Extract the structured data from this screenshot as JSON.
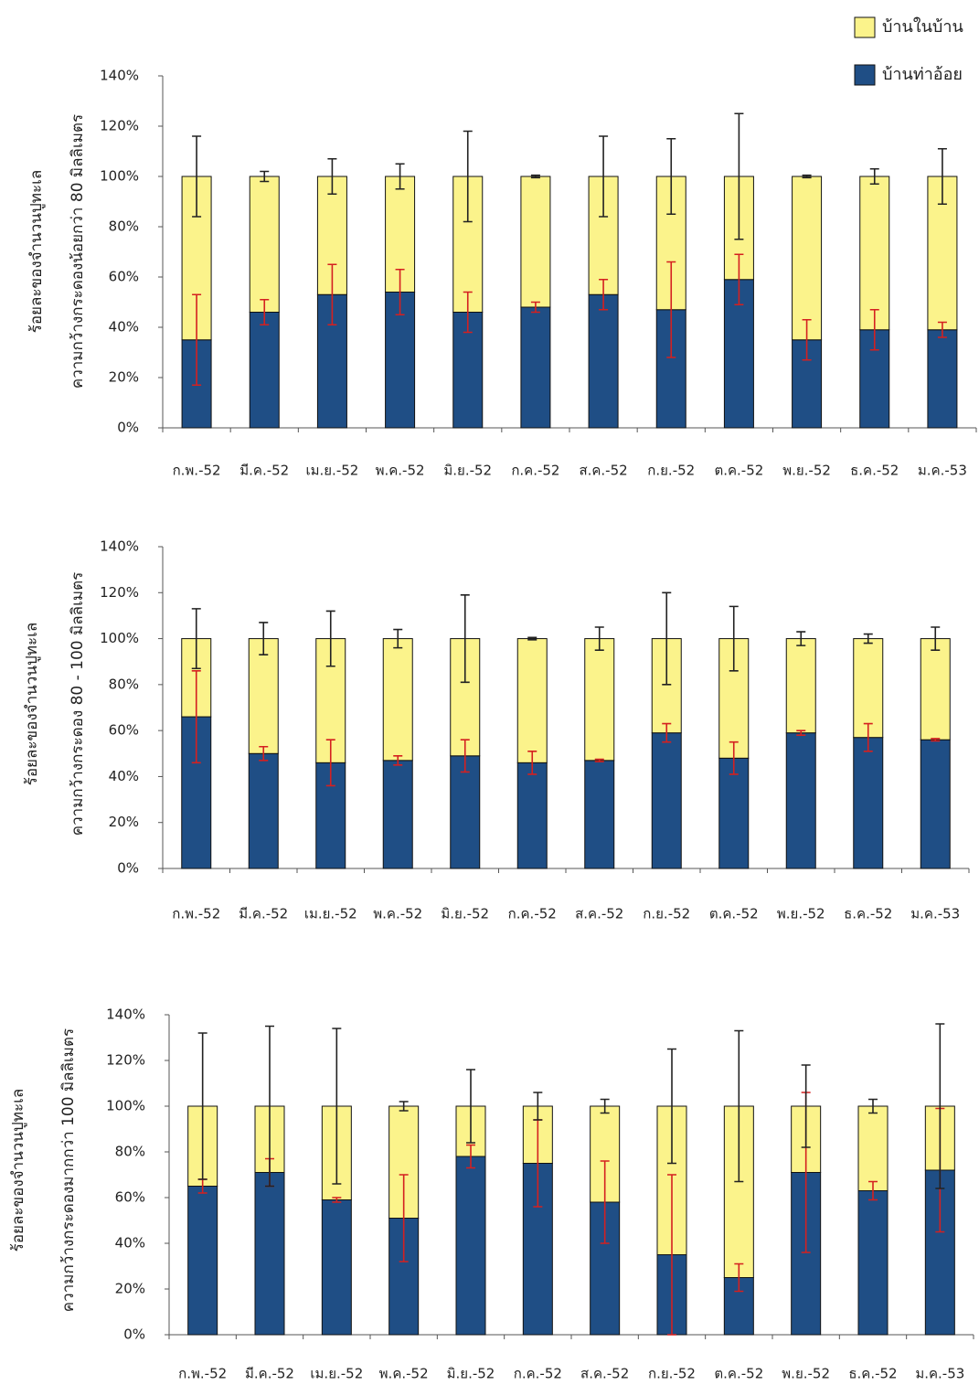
{
  "chart_data": [
    {
      "type": "bar",
      "stacked": true,
      "y_label_lines": [
        "ร้อยละของจำนวนปูทะเล",
        "ความกว้างกระดองน้อยกว่า 80 มิลลิเมตร"
      ],
      "categories": [
        "ก.พ.-52",
        "มี.ค.-52",
        "เม.ย.-52",
        "พ.ค.-52",
        "มิ.ย.-52",
        "ก.ค.-52",
        "ส.ค.-52",
        "ก.ย.-52",
        "ต.ค.-52",
        "พ.ย.-52",
        "ธ.ค.-52",
        "ม.ค.-53"
      ],
      "series": [
        {
          "name": "บ้านท่าอ้อย",
          "color": "#1f4e85",
          "error_color": "#d42020",
          "values": [
            35,
            46,
            53,
            54,
            46,
            48,
            53,
            47,
            59,
            35,
            39,
            39
          ],
          "errors": [
            18,
            5,
            12,
            9,
            8,
            2,
            6,
            19,
            10,
            8,
            8,
            3
          ]
        },
        {
          "name": "บ้านในบ้าน",
          "color": "#fbf38b",
          "error_color": "#222222",
          "values": [
            65,
            54,
            47,
            46,
            54,
            52,
            47,
            53,
            41,
            65,
            61,
            61
          ],
          "errors": [
            16,
            2,
            7,
            5,
            18,
            0.5,
            16,
            15,
            25,
            0.5,
            3,
            11
          ]
        }
      ],
      "ylim": [
        0,
        140
      ],
      "yticks": [
        {
          "value": 0,
          "label": "0%"
        },
        {
          "value": 20,
          "label": "20%"
        },
        {
          "value": 40,
          "label": "40%"
        },
        {
          "value": 60,
          "label": "60%"
        },
        {
          "value": 80,
          "label": "80%"
        },
        {
          "value": 100,
          "label": "100%"
        },
        {
          "value": 120,
          "label": "120%"
        },
        {
          "value": 140,
          "label": "140%"
        }
      ],
      "legend": "top-right"
    },
    {
      "type": "bar",
      "stacked": true,
      "y_label_lines": [
        "ร้อยละของจำนวนปูทะเล",
        "ความกว้างกระดอง 80 - 100 มิลลิเมตร"
      ],
      "categories": [
        "ก.พ.-52",
        "มี.ค.-52",
        "เม.ย.-52",
        "พ.ค.-52",
        "มิ.ย.-52",
        "ก.ค.-52",
        "ส.ค.-52",
        "ก.ย.-52",
        "ต.ค.-52",
        "พ.ย.-52",
        "ธ.ค.-52",
        "ม.ค.-53"
      ],
      "series": [
        {
          "color": "#1f4e85",
          "error_color": "#d42020",
          "values": [
            66,
            50,
            46,
            47,
            49,
            46,
            47,
            59,
            48,
            59,
            57,
            56
          ],
          "errors": [
            20,
            3,
            10,
            2,
            7,
            5,
            0.5,
            4,
            7,
            1,
            6,
            0.5
          ]
        },
        {
          "color": "#fbf38b",
          "error_color": "#222222",
          "values": [
            34,
            50,
            54,
            53,
            51,
            54,
            53,
            41,
            52,
            41,
            43,
            44
          ],
          "errors": [
            13,
            7,
            12,
            4,
            19,
            0.5,
            5,
            20,
            14,
            3,
            2,
            5
          ]
        }
      ],
      "ylim": [
        0,
        140
      ],
      "yticks": [
        {
          "value": 0,
          "label": "0%"
        },
        {
          "value": 20,
          "label": "20%"
        },
        {
          "value": 40,
          "label": "40%"
        },
        {
          "value": 60,
          "label": "60%"
        },
        {
          "value": 80,
          "label": "80%"
        },
        {
          "value": 100,
          "label": "100%"
        },
        {
          "value": 120,
          "label": "120%"
        },
        {
          "value": 140,
          "label": "140%"
        }
      ]
    },
    {
      "type": "bar",
      "stacked": true,
      "y_label_lines": [
        "ร้อยละของจำนวนปูทะเล",
        "ความกว้างกระดองมากกว่า 100 มิลลิเมตร"
      ],
      "categories": [
        "ก.พ.-52",
        "มี.ค.-52",
        "เม.ย.-52",
        "พ.ค.-52",
        "มิ.ย.-52",
        "ก.ค.-52",
        "ส.ค.-52",
        "ก.ย.-52",
        "ต.ค.-52",
        "พ.ย.-52",
        "ธ.ค.-52",
        "ม.ค.-53"
      ],
      "series": [
        {
          "color": "#1f4e85",
          "error_color": "#d42020",
          "values": [
            65,
            71,
            59,
            51,
            78,
            75,
            58,
            35,
            25,
            71,
            63,
            72
          ],
          "errors": [
            3,
            6,
            1,
            19,
            5,
            19,
            18,
            35,
            6,
            35,
            4,
            27
          ]
        },
        {
          "color": "#fbf38b",
          "error_color": "#222222",
          "values": [
            35,
            29,
            41,
            49,
            22,
            25,
            42,
            65,
            75,
            29,
            37,
            28
          ],
          "errors": [
            32,
            35,
            34,
            2,
            16,
            6,
            3,
            25,
            33,
            18,
            3,
            36
          ]
        }
      ],
      "ylim": [
        0,
        140
      ],
      "yticks": [
        {
          "value": 0,
          "label": "0%"
        },
        {
          "value": 20,
          "label": "20%"
        },
        {
          "value": 40,
          "label": "40%"
        },
        {
          "value": 60,
          "label": "60%"
        },
        {
          "value": 80,
          "label": "80%"
        },
        {
          "value": 100,
          "label": "100%"
        },
        {
          "value": 120,
          "label": "120%"
        },
        {
          "value": 140,
          "label": "140%"
        }
      ]
    }
  ]
}
